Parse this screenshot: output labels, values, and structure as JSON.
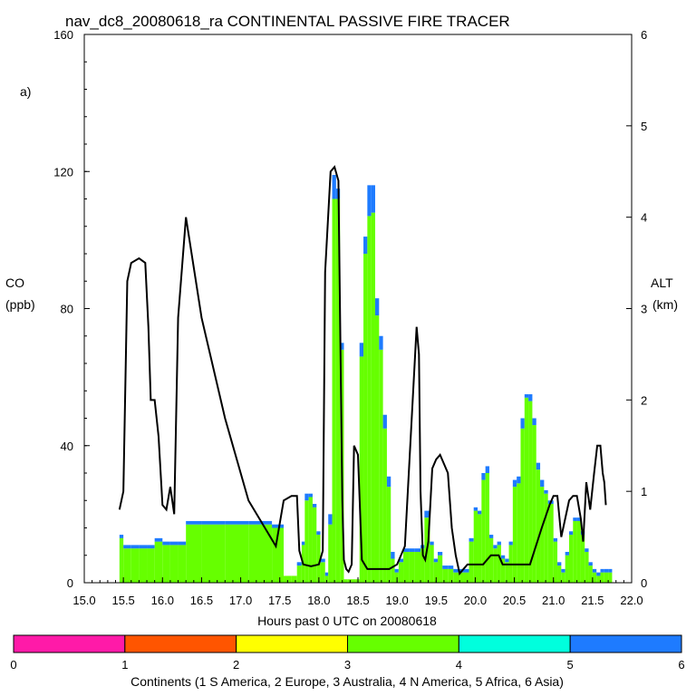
{
  "chart_data": {
    "type": "bar",
    "title": "nav_dc8_20080618_ra CONTINENTAL PASSIVE FIRE TRACER",
    "panel_label": "a)",
    "xlabel": "Hours past 0 UTC on 20080618",
    "ylabel_left": "CO",
    "ylabel_left_unit": "(ppb)",
    "ylabel_right": "ALT",
    "ylabel_right_unit": "(km)",
    "xlim": [
      15.0,
      22.0
    ],
    "ylim_left": [
      0,
      160
    ],
    "ylim_right": [
      0,
      6
    ],
    "x_ticks": [
      "15.0",
      "15.5",
      "16.0",
      "16.5",
      "17.0",
      "17.5",
      "18.0",
      "18.5",
      "19.0",
      "19.5",
      "20.0",
      "20.5",
      "21.0",
      "21.5",
      "22.0"
    ],
    "y_left_ticks": [
      "0",
      "40",
      "80",
      "120",
      "160"
    ],
    "y_right_ticks": [
      "0",
      "1",
      "2",
      "3",
      "4",
      "5",
      "6"
    ],
    "colorbar": {
      "label": "Continents (1 S America, 2 Europe, 3 Australia, 4 N America, 5 Africa, 6 Asia)",
      "ticks": [
        "0",
        "1",
        "2",
        "3",
        "4",
        "5",
        "6"
      ],
      "colors": [
        "#ff1aa8",
        "#ff5500",
        "#ffff00",
        "#66ff00",
        "#00ffdd",
        "#1e7bff"
      ]
    },
    "series": [
      {
        "name": "4 N America",
        "color": "#66ff00",
        "x": [
          15.45,
          15.5,
          15.6,
          15.7,
          15.8,
          15.9,
          16.0,
          16.1,
          16.2,
          16.3,
          16.5,
          16.8,
          17.1,
          17.4,
          17.55,
          17.65,
          17.72,
          17.78,
          17.82,
          17.87,
          17.92,
          17.97,
          18.02,
          18.08,
          18.12,
          18.17,
          18.22,
          18.27,
          18.32,
          18.37,
          18.42,
          18.47,
          18.52,
          18.57,
          18.62,
          18.67,
          18.72,
          18.77,
          18.82,
          18.87,
          18.92,
          18.97,
          19.02,
          19.08,
          19.15,
          19.22,
          19.3,
          19.35,
          19.42,
          19.47,
          19.52,
          19.58,
          19.65,
          19.72,
          19.8,
          19.85,
          19.92,
          19.98,
          20.03,
          20.08,
          20.13,
          20.18,
          20.23,
          20.28,
          20.33,
          20.38,
          20.43,
          20.48,
          20.53,
          20.58,
          20.63,
          20.68,
          20.73,
          20.78,
          20.83,
          20.88,
          20.93,
          21.0,
          21.05,
          21.1,
          21.15,
          21.2,
          21.25,
          21.3,
          21.35,
          21.4,
          21.45,
          21.5,
          21.55,
          21.6,
          21.65,
          21.7
        ],
        "values": [
          13,
          10,
          10,
          10,
          10,
          12,
          11,
          11,
          11,
          17,
          17,
          17,
          17,
          16,
          2,
          2,
          5,
          11,
          24,
          25,
          22,
          14,
          6,
          2,
          17,
          112,
          112,
          68,
          1,
          1,
          1,
          1,
          66,
          96,
          107,
          108,
          78,
          68,
          45,
          28,
          7,
          3,
          6,
          9,
          9,
          9,
          10,
          19,
          11,
          6,
          8,
          4,
          4,
          3,
          3,
          3,
          12,
          21,
          20,
          30,
          32,
          13,
          10,
          11,
          7,
          6,
          11,
          28,
          29,
          45,
          54,
          53,
          46,
          33,
          28,
          26,
          23,
          12,
          5,
          3,
          8,
          14,
          18,
          18,
          14,
          9,
          5,
          3,
          2,
          3,
          3,
          3
        ]
      },
      {
        "name": "6 Asia",
        "color": "#1e7bff",
        "x": [
          15.45,
          15.5,
          15.6,
          15.7,
          15.8,
          15.9,
          16.0,
          16.1,
          16.2,
          16.3,
          16.5,
          16.8,
          17.1,
          17.4,
          17.55,
          17.65,
          17.72,
          17.78,
          17.82,
          17.87,
          17.92,
          17.97,
          18.02,
          18.08,
          18.12,
          18.17,
          18.22,
          18.27,
          18.32,
          18.37,
          18.42,
          18.47,
          18.52,
          18.57,
          18.62,
          18.67,
          18.72,
          18.77,
          18.82,
          18.87,
          18.92,
          18.97,
          19.02,
          19.08,
          19.15,
          19.22,
          19.3,
          19.35,
          19.42,
          19.47,
          19.52,
          19.58,
          19.65,
          19.72,
          19.8,
          19.85,
          19.92,
          19.98,
          20.03,
          20.08,
          20.13,
          20.18,
          20.23,
          20.28,
          20.33,
          20.38,
          20.43,
          20.48,
          20.53,
          20.58,
          20.63,
          20.68,
          20.73,
          20.78,
          20.83,
          20.88,
          20.93,
          21.0,
          21.05,
          21.1,
          21.15,
          21.2,
          21.25,
          21.3,
          21.35,
          21.4,
          21.45,
          21.5,
          21.55,
          21.6,
          21.65,
          21.7
        ],
        "values": [
          1,
          1,
          1,
          1,
          1,
          1,
          1,
          1,
          1,
          1,
          1,
          1,
          1,
          1,
          0,
          0,
          1,
          1,
          2,
          1,
          1,
          1,
          1,
          1,
          3,
          7,
          3,
          2,
          0,
          0,
          0,
          0,
          4,
          5,
          9,
          8,
          5,
          4,
          4,
          3,
          2,
          1,
          1,
          1,
          1,
          1,
          1,
          2,
          1,
          1,
          1,
          1,
          1,
          1,
          1,
          1,
          1,
          1,
          1,
          2,
          2,
          1,
          1,
          1,
          1,
          1,
          1,
          2,
          2,
          3,
          1,
          2,
          2,
          2,
          2,
          1,
          1,
          1,
          1,
          1,
          1,
          1,
          1,
          1,
          1,
          1,
          1,
          1,
          1,
          1,
          1,
          1
        ]
      },
      {
        "name": "ALT",
        "axis": "right",
        "color": "#000000",
        "x": [
          15.45,
          15.5,
          15.55,
          15.6,
          15.7,
          15.78,
          15.82,
          15.85,
          15.9,
          15.95,
          16.0,
          16.05,
          16.1,
          16.15,
          16.2,
          16.3,
          16.5,
          16.8,
          17.1,
          17.45,
          17.55,
          17.65,
          17.72,
          17.75,
          17.8,
          17.9,
          18.0,
          18.05,
          18.08,
          18.15,
          18.2,
          18.25,
          18.3,
          18.32,
          18.35,
          18.38,
          18.42,
          18.45,
          18.5,
          18.55,
          18.62,
          18.67,
          18.8,
          18.9,
          19.0,
          19.1,
          19.2,
          19.25,
          19.28,
          19.3,
          19.33,
          19.36,
          19.4,
          19.45,
          19.5,
          19.55,
          19.6,
          19.65,
          19.7,
          19.75,
          19.8,
          19.9,
          20.0,
          20.1,
          20.2,
          20.3,
          20.35,
          20.4,
          20.5,
          20.7,
          20.85,
          20.95,
          21.0,
          21.05,
          21.1,
          21.2,
          21.25,
          21.3,
          21.35,
          21.38,
          21.42,
          21.47,
          21.52,
          21.56,
          21.6,
          21.63,
          21.65,
          21.67
        ],
        "values": [
          0.8,
          1.0,
          3.3,
          3.5,
          3.55,
          3.5,
          2.8,
          2.0,
          2.0,
          1.6,
          0.85,
          0.8,
          1.05,
          0.75,
          2.9,
          4.0,
          2.9,
          1.8,
          0.9,
          0.4,
          0.9,
          0.95,
          0.95,
          0.35,
          0.2,
          0.18,
          0.2,
          0.35,
          3.4,
          4.5,
          4.55,
          4.4,
          0.9,
          0.25,
          0.15,
          0.12,
          0.2,
          1.5,
          1.4,
          0.25,
          0.15,
          0.15,
          0.15,
          0.15,
          0.2,
          0.4,
          2.0,
          2.8,
          2.5,
          1.0,
          0.3,
          0.25,
          0.45,
          1.25,
          1.35,
          1.4,
          1.3,
          1.2,
          0.6,
          0.3,
          0.1,
          0.2,
          0.2,
          0.2,
          0.3,
          0.3,
          0.2,
          0.2,
          0.2,
          0.2,
          0.6,
          0.85,
          0.95,
          0.95,
          0.5,
          0.9,
          0.95,
          0.95,
          0.7,
          0.45,
          1.1,
          0.8,
          1.2,
          1.5,
          1.5,
          1.2,
          1.1,
          0.85
        ]
      }
    ]
  }
}
